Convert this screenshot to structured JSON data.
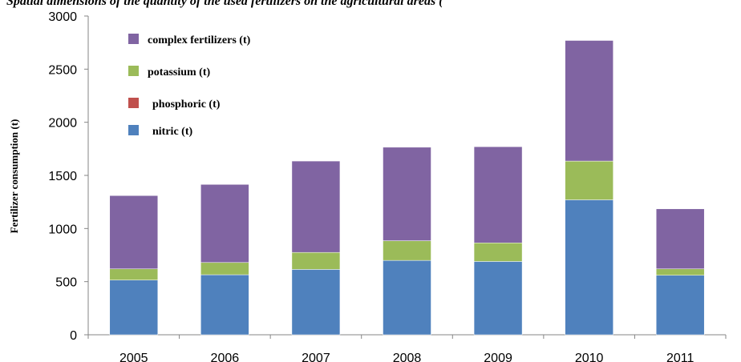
{
  "title": "Spatial dimensions of the quantity of the used fertilizers on the agricultural areas (",
  "chart_data": {
    "type": "bar",
    "stacked": true,
    "categories": [
      "2005",
      "2006",
      "2007",
      "2008",
      "2009",
      "2010",
      "2011"
    ],
    "series": [
      {
        "name": "nitric (t)",
        "color": "#4f81bd",
        "values": [
          515,
          565,
          615,
          700,
          690,
          1270,
          560
        ]
      },
      {
        "name": "phosphoric (t)",
        "color": "#c0504d",
        "values": [
          0,
          0,
          0,
          0,
          0,
          0,
          0
        ]
      },
      {
        "name": "potassium (t)",
        "color": "#9bbb59",
        "values": [
          105,
          115,
          160,
          185,
          175,
          365,
          60
        ]
      },
      {
        "name": "complex fertilizers (t)",
        "color": "#8064a2",
        "values": [
          690,
          735,
          860,
          880,
          905,
          1135,
          565
        ]
      }
    ],
    "legend_order": [
      "complex fertilizers (t)",
      "potassium (t)",
      "phosphoric (t)",
      "nitric (t)"
    ],
    "ylabel": "Fertilizer consumption (t)",
    "xlabel": "",
    "ylim": [
      0,
      3000
    ],
    "yticks": [
      0,
      500,
      1000,
      1500,
      2000,
      2500,
      3000
    ],
    "grid": false,
    "legend_position": "top-left"
  }
}
